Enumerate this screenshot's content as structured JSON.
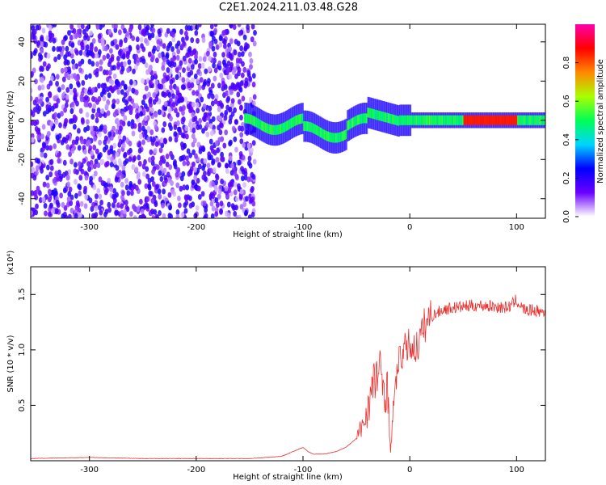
{
  "title": "C2E1.2024.211.03.48.G28",
  "chart_data": [
    {
      "type": "heatmap",
      "xlabel": "Height of straight line (km)",
      "ylabel": "Frequency (Hz)",
      "xlim": [
        -355,
        127
      ],
      "ylim": [
        -50,
        49
      ],
      "xticks": [
        -300,
        -200,
        -100,
        0,
        100
      ],
      "yticks": [
        -40,
        -20,
        0,
        20,
        40
      ],
      "colorbar": {
        "label": "Normalized spectral amplitude",
        "range": [
          0,
          1
        ],
        "ticks": [
          "0.0",
          "0.2",
          "0.4",
          "0.6",
          "0.8"
        ],
        "tick_values": [
          0.0,
          0.2,
          0.4,
          0.6,
          0.8
        ],
        "colors": [
          "#ffffff",
          "#6a00ff",
          "#0000ff",
          "#00d5ff",
          "#00ff55",
          "#aaff00",
          "#ff8800",
          "#ff0000",
          "#ff00aa"
        ]
      },
      "regions": [
        {
          "description": "noise",
          "x": [
            -355,
            -145
          ],
          "frequency": [
            -50,
            49
          ],
          "amplitude": 0.2
        },
        {
          "description": "signal band",
          "x": [
            -155,
            127
          ],
          "frequency": [
            -8,
            8
          ],
          "amplitude": 0.35
        },
        {
          "description": "signal core",
          "x": [
            -150,
            127
          ],
          "frequency": [
            -3,
            3
          ],
          "amplitude": 0.45
        },
        {
          "description": "peak",
          "x": [
            50,
            100
          ],
          "frequency": [
            -1,
            2
          ],
          "amplitude": 0.9
        }
      ]
    },
    {
      "type": "line",
      "xlabel": "Height of straight line (km)",
      "ylabel": "SNR (10 * v/v)",
      "scale_label": "(x10⁴)",
      "scale_factor": 10000,
      "xlim": [
        -355,
        127
      ],
      "ylim": [
        0,
        1.75
      ],
      "xticks": [
        -300,
        -200,
        -100,
        0,
        100
      ],
      "yticks": [
        0.5,
        1.0,
        1.5
      ],
      "ytick_labels": [
        "0.5",
        "1.0",
        "1.5"
      ],
      "series": [
        {
          "color": "#e8312f",
          "x": [
            -355,
            -300,
            -250,
            -200,
            -150,
            -120,
            -110,
            -100,
            -95,
            -90,
            -80,
            -70,
            -60,
            -50,
            -45,
            -40,
            -35,
            -30,
            -25,
            -20,
            -18,
            -15,
            -12,
            -10,
            -5,
            0,
            5,
            10,
            15,
            20,
            25,
            30,
            40,
            50,
            60,
            70,
            80,
            90,
            95,
            100,
            105,
            110,
            115,
            120,
            127
          ],
          "y": [
            0.02,
            0.03,
            0.02,
            0.02,
            0.02,
            0.04,
            0.08,
            0.12,
            0.08,
            0.06,
            0.06,
            0.08,
            0.12,
            0.2,
            0.3,
            0.45,
            0.65,
            0.8,
            0.7,
            0.6,
            0.05,
            0.5,
            0.8,
            0.9,
            1.0,
            1.05,
            1.0,
            1.1,
            1.25,
            1.3,
            1.33,
            1.36,
            1.38,
            1.39,
            1.4,
            1.4,
            1.39,
            1.38,
            1.4,
            1.45,
            1.38,
            1.35,
            1.36,
            1.35,
            1.34
          ]
        }
      ]
    }
  ]
}
